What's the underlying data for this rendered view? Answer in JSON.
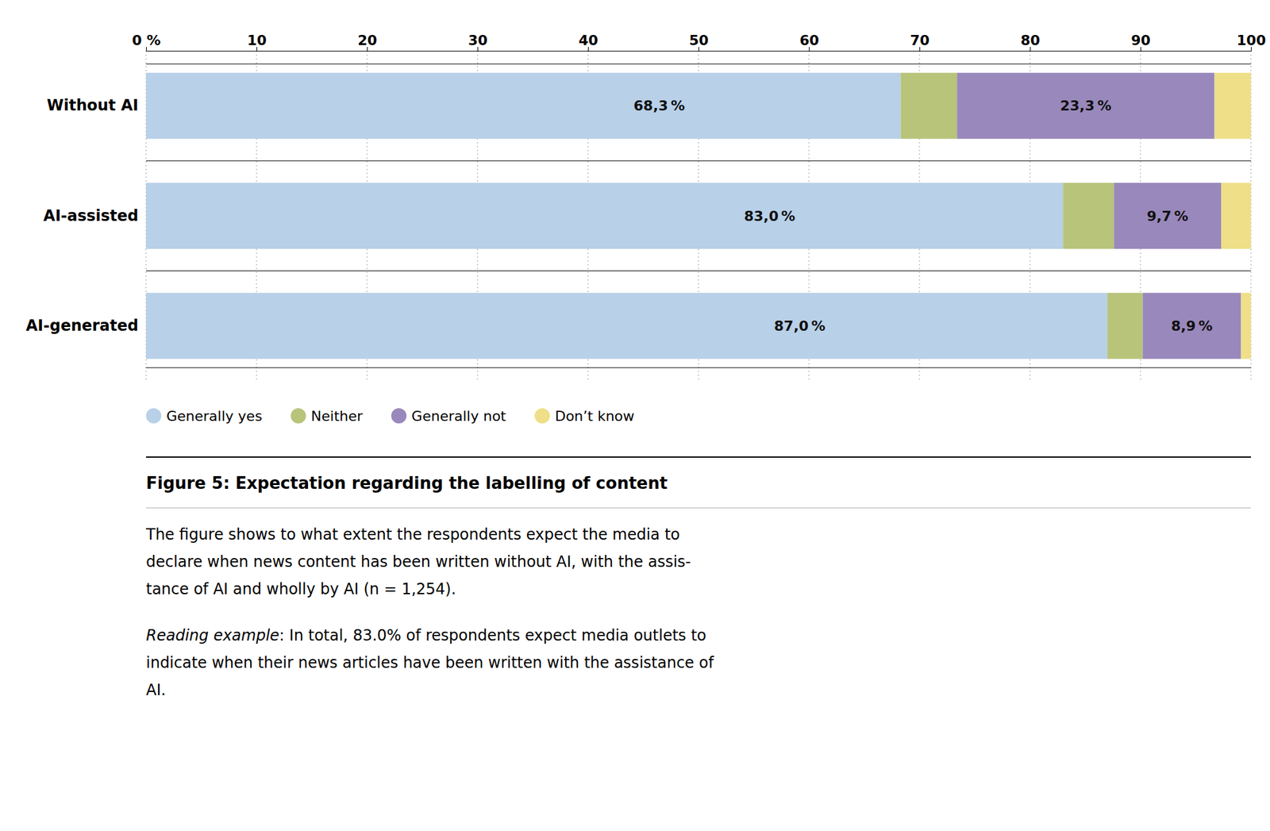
{
  "chart_data": {
    "type": "bar",
    "orientation": "horizontal",
    "stacked": true,
    "grid": true,
    "legend": "bottom",
    "data_labels": true,
    "title": "Figure 5: Expectation regarding the labelling of content",
    "annotations": [
      "The figure shows to what extent the respondents expect the media to\ndeclare when news content has been written without AI, with the assis-\ntance of AI and wholly by AI (n = 1,254).",
      "Reading example",
      ": In total, 83.0% of respondents expect media outlets to\nindicate when their news articles have been written with the assistance of\nAI."
    ],
    "categories": [
      "Without AI",
      "AI-assisted",
      "AI-generated"
    ],
    "series": [
      {
        "name": "Generally yes",
        "color": "#b8d0e8",
        "values": [
          68.3,
          83.0,
          87.0
        ],
        "value_labels": [
          "68,3 %",
          "83,0 %",
          "87,0 %"
        ]
      },
      {
        "name": "Neither",
        "color": "#b8c47a",
        "values": [
          5.1,
          4.6,
          3.2
        ]
      },
      {
        "name": "Generally not",
        "color": "#9988bb",
        "values": [
          23.3,
          9.7,
          8.9
        ],
        "value_labels": [
          "23,3 %",
          "9,7 %",
          "8,9 %"
        ]
      },
      {
        "name": "Don’t know",
        "color": "#eedf88",
        "values": [
          3.3,
          2.7,
          0.9
        ]
      }
    ],
    "xlim": [
      0,
      100
    ],
    "xticks": [
      {
        "value": 0,
        "label": "0 %"
      },
      10,
      20,
      30,
      40,
      50,
      60,
      70,
      80,
      90,
      100
    ]
  }
}
